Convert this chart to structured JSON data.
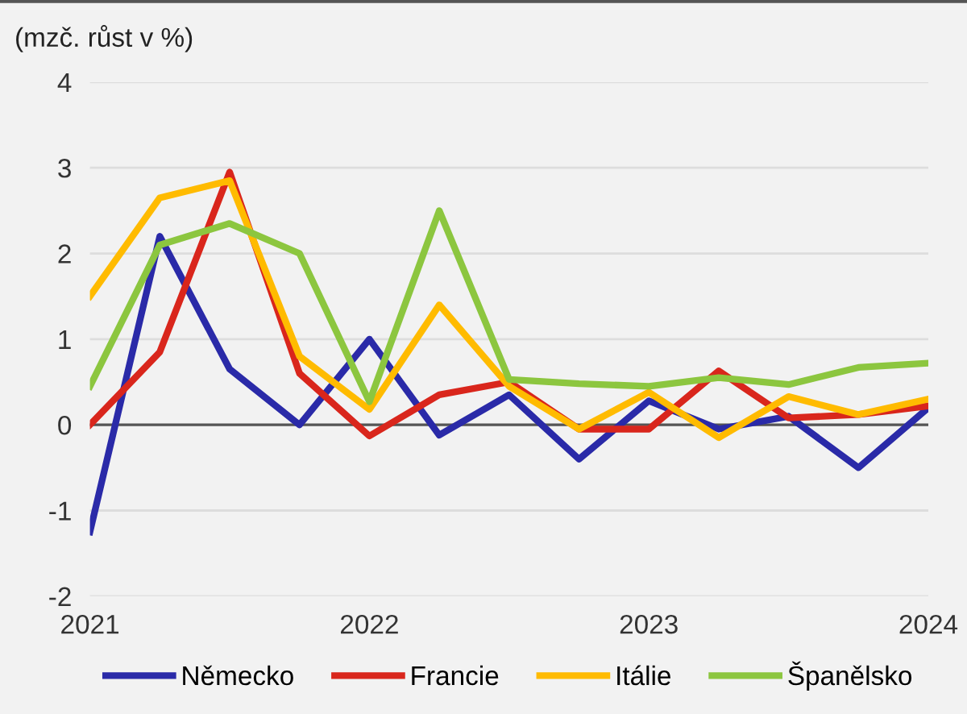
{
  "chart_data": {
    "type": "line",
    "ylabel": "(mzč. růst v %)",
    "x": [
      2021,
      2021.25,
      2021.5,
      2021.75,
      2022,
      2022.25,
      2022.5,
      2022.75,
      2023,
      2023.25,
      2023.5,
      2023.75,
      2024
    ],
    "series": [
      {
        "name": "Německo",
        "color": "#2a2aa8",
        "values": [
          -1.25,
          2.2,
          0.65,
          0.0,
          1.0,
          -0.12,
          0.35,
          -0.4,
          0.28,
          -0.05,
          0.1,
          -0.5,
          0.2
        ]
      },
      {
        "name": "Francie",
        "color": "#d9261c",
        "values": [
          0.0,
          0.85,
          2.95,
          0.6,
          -0.13,
          0.35,
          0.5,
          -0.05,
          -0.05,
          0.63,
          0.08,
          0.12,
          0.22
        ]
      },
      {
        "name": "Itálie",
        "color": "#ffbb00",
        "values": [
          1.5,
          2.65,
          2.85,
          0.8,
          0.18,
          1.4,
          0.45,
          -0.05,
          0.38,
          -0.15,
          0.33,
          0.12,
          0.3
        ]
      },
      {
        "name": "Španělsko",
        "color": "#8cc63f",
        "values": [
          0.45,
          2.1,
          2.35,
          2.0,
          0.27,
          2.5,
          0.53,
          0.48,
          0.45,
          0.55,
          0.47,
          0.67,
          0.72
        ]
      }
    ],
    "xlim": [
      2021,
      2024
    ],
    "xticks": [
      2021,
      2022,
      2023,
      2024
    ],
    "ylim": [
      -2,
      4
    ],
    "yticks": [
      -2,
      -1,
      0,
      1,
      2,
      3,
      4
    ],
    "ref_lines": [
      {
        "axis": "y",
        "value": 0,
        "color": "#555555"
      }
    ],
    "grid": "y",
    "legend": "bottom",
    "marker": "none",
    "line_style": "solid"
  }
}
